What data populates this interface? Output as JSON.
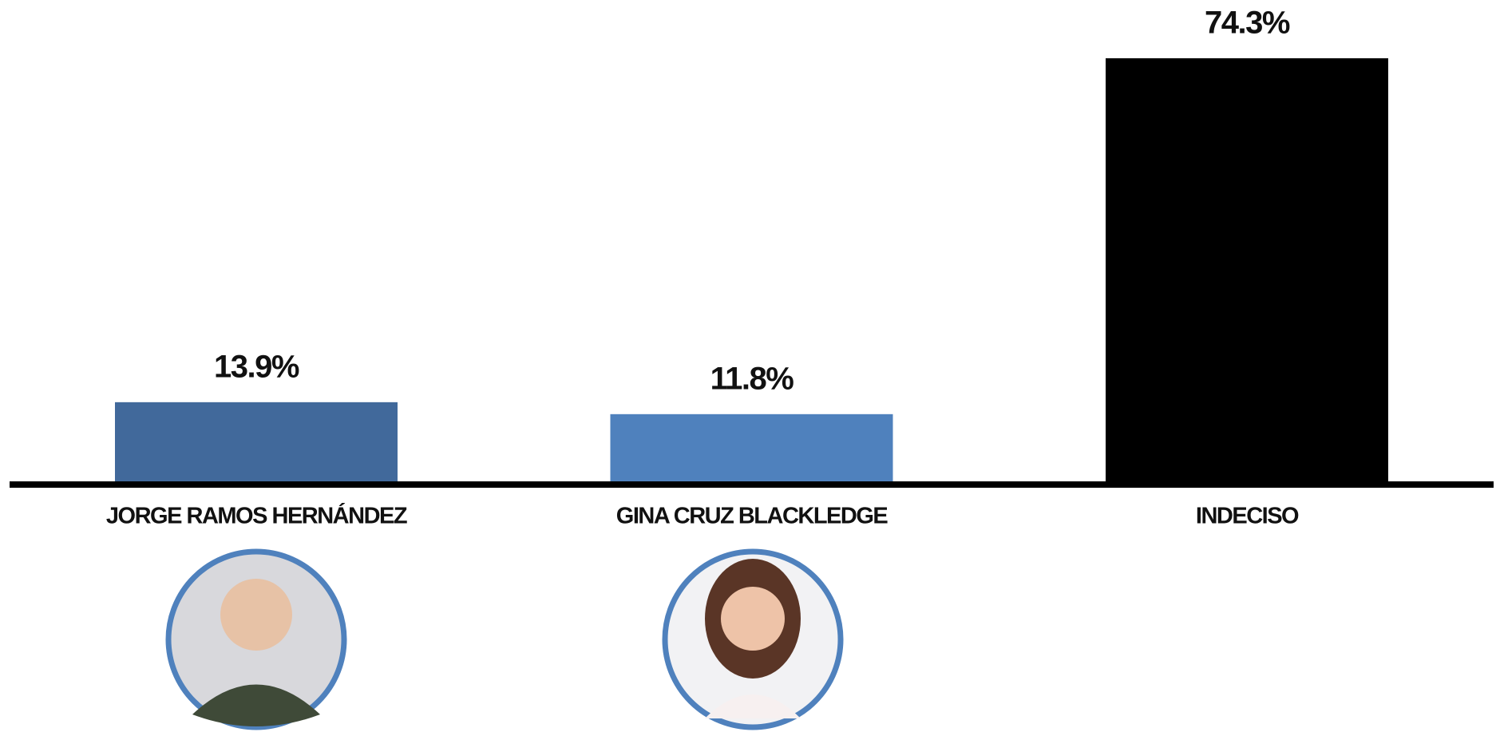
{
  "chart_data": {
    "type": "bar",
    "categories": [
      "JORGE RAMOS HERNÁNDEZ",
      "GINA CRUZ BLACKLEDGE",
      "INDECISO"
    ],
    "values": [
      13.9,
      11.8,
      74.3
    ],
    "value_labels": [
      "13.9%",
      "11.8%",
      "74.3%"
    ],
    "colors": [
      "#41699b",
      "#4f81bd",
      "#000000"
    ]
  }
}
